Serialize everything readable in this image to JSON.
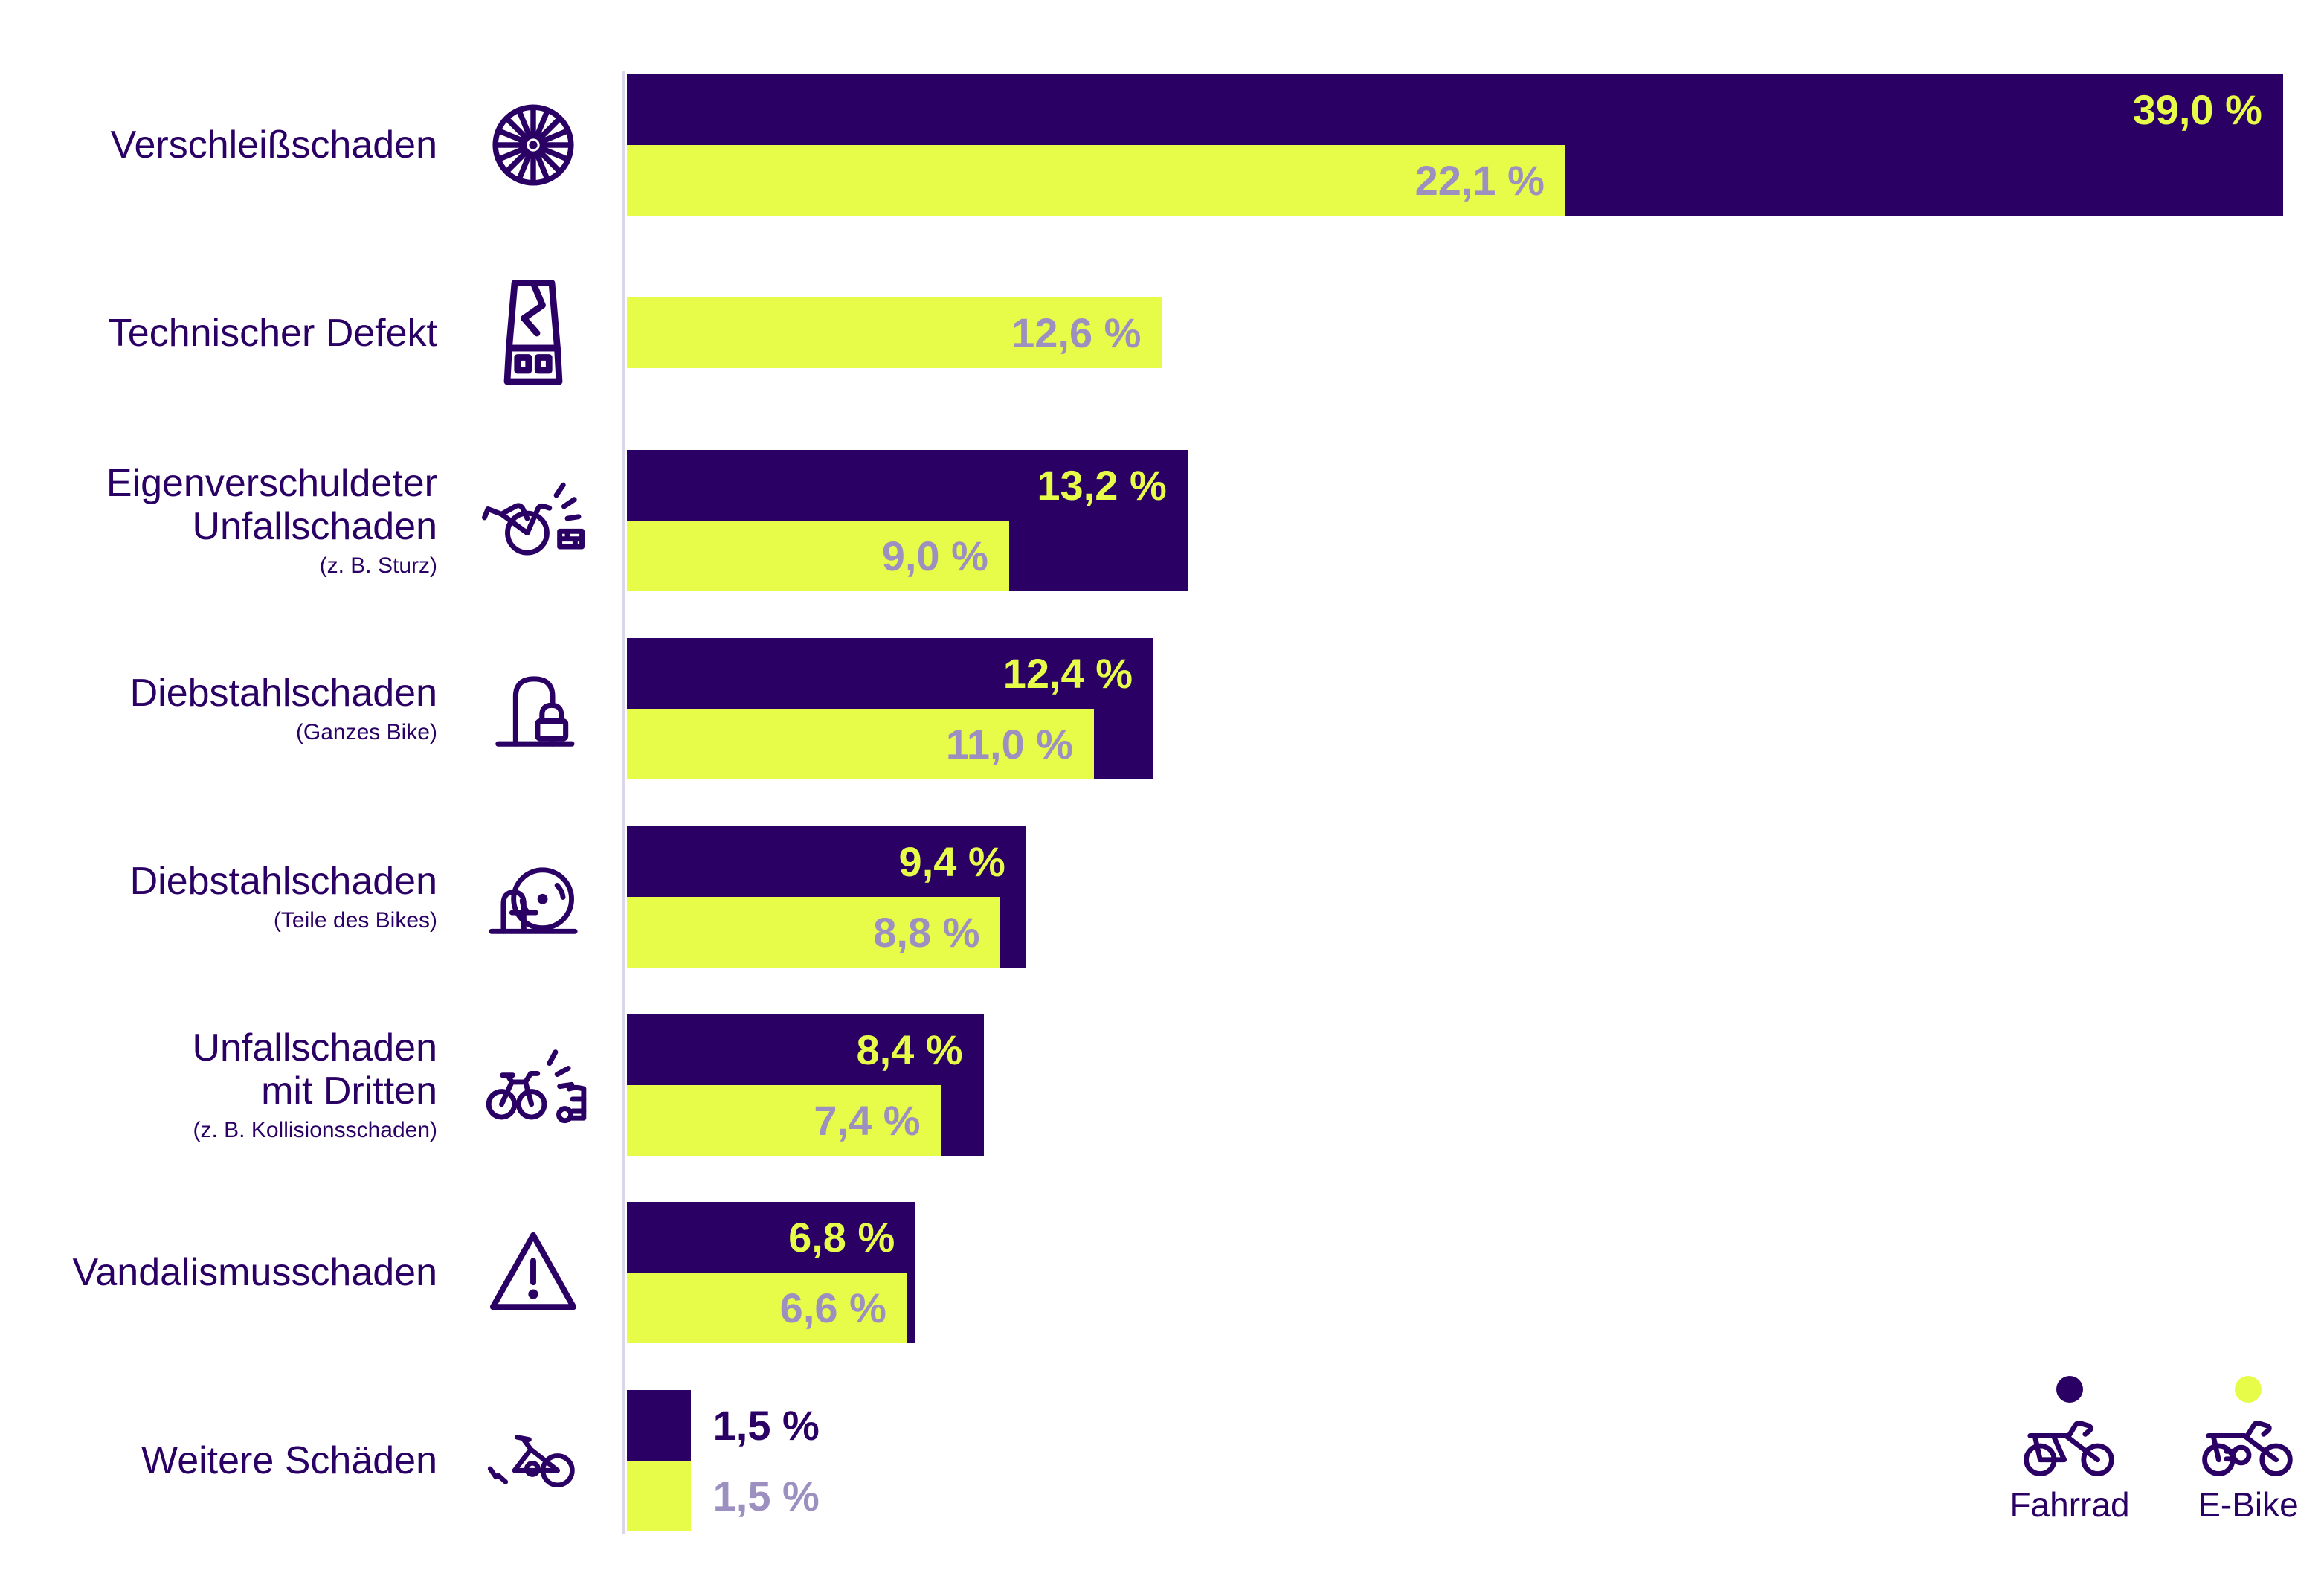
{
  "colors": {
    "fahrrad_bar": "#2a0065",
    "ebike_bar": "#e7fc49",
    "ebike_value_text": "#9c90c0",
    "category_text": "#2a0065",
    "axis_line": "#dcd6ea",
    "background": "#ffffff"
  },
  "chart_data": {
    "type": "bar",
    "orientation": "horizontal",
    "value_unit": "%",
    "decimal_separator": ",",
    "xlim": [
      0,
      39.0
    ],
    "grid": false,
    "legend_position": "bottom-right",
    "series": [
      {
        "name": "Fahrrad",
        "color": "#2a0065",
        "values": [
          39.0,
          null,
          13.2,
          12.4,
          9.4,
          8.4,
          6.8,
          1.5
        ]
      },
      {
        "name": "E-Bike",
        "color": "#e7fc49",
        "values": [
          22.1,
          12.6,
          9.0,
          11.0,
          8.8,
          7.4,
          6.6,
          1.5
        ]
      }
    ],
    "categories": [
      {
        "label_lines": [
          "Verschleißschaden"
        ],
        "sublabel": "",
        "icon": "wheel-icon",
        "fahrrad_display": "39,0 %",
        "ebike_display": "22,1 %"
      },
      {
        "label_lines": [
          "Technischer Defekt"
        ],
        "sublabel": "",
        "icon": "broken-battery-icon",
        "fahrrad_display": null,
        "ebike_display": "12,6 %"
      },
      {
        "label_lines": [
          "Eigenverschuldeter",
          "Unfallschaden"
        ],
        "sublabel": "(z. B. Sturz)",
        "icon": "bike-fall-icon",
        "fahrrad_display": "13,2 %",
        "ebike_display": "9,0 %"
      },
      {
        "label_lines": [
          "Diebstahlschaden"
        ],
        "sublabel": "(Ganzes Bike)",
        "icon": "bike-stand-lock-icon",
        "fahrrad_display": "12,4 %",
        "ebike_display": "11,0 %"
      },
      {
        "label_lines": [
          "Diebstahlschaden"
        ],
        "sublabel": "(Teile des Bikes)",
        "icon": "wheel-lock-icon",
        "fahrrad_display": "9,4 %",
        "ebike_display": "8,8 %"
      },
      {
        "label_lines": [
          "Unfallschaden",
          "mit Dritten"
        ],
        "sublabel": "(z. B. Kollisionsschaden)",
        "icon": "bike-collision-icon",
        "fahrrad_display": "8,4 %",
        "ebike_display": "7,4 %"
      },
      {
        "label_lines": [
          "Vandalismusschaden"
        ],
        "sublabel": "",
        "icon": "warning-triangle-icon",
        "fahrrad_display": "6,8 %",
        "ebike_display": "6,6 %"
      },
      {
        "label_lines": [
          "Weitere Schäden"
        ],
        "sublabel": "",
        "icon": "broken-bike-icon",
        "fahrrad_display": "1,5 %",
        "ebike_display": "1,5 %"
      }
    ],
    "legend": {
      "items": [
        {
          "label": "Fahrrad",
          "dot_color": "#2a0065",
          "icon": "bicycle-icon"
        },
        {
          "label": "E-Bike",
          "dot_color": "#e7fc49",
          "icon": "ebike-icon"
        }
      ]
    }
  }
}
